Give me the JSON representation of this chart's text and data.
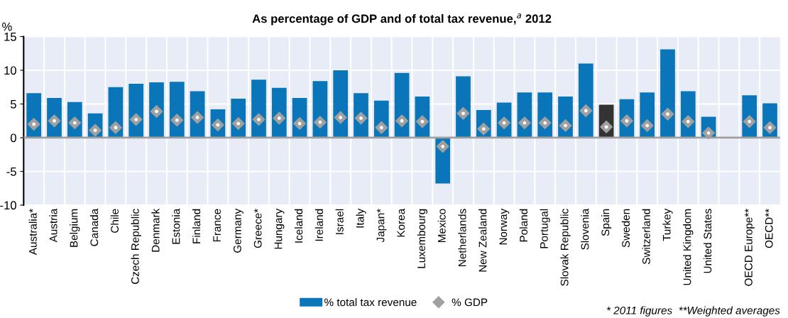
{
  "chart_data": {
    "type": "bar",
    "title": "As percentage of GDP and of total tax revenue,$^{a}$ 2012",
    "ylabel": "%",
    "categories": [
      "Australia*",
      "Austria",
      "Belgium",
      "Canada",
      "Chile",
      "Czech Republic",
      "Denmark",
      "Estonia",
      "Finland",
      "France",
      "Germany",
      "Greece*",
      "Hungary",
      "Iceland",
      "Ireland",
      "Israel",
      "Italy",
      "Japan*",
      "Korea",
      "Luxembourg",
      "Mexico",
      "Netherlands",
      "New Zealand",
      "Norway",
      "Poland",
      "Portugal",
      "Slovak Republic",
      "Slovenia",
      "Spain",
      "Sweden",
      "Switzerland",
      "Turkey",
      "United Kingdom",
      "United States",
      null,
      "OECD Europe**",
      "OECD**"
    ],
    "series": [
      {
        "name": "% total tax revenue",
        "color": "#0a76b9",
        "colors": [
          "#0a76b9",
          "#0a76b9",
          "#0a76b9",
          "#0a76b9",
          "#0a76b9",
          "#0a76b9",
          "#0a76b9",
          "#0a76b9",
          "#0a76b9",
          "#0a76b9",
          "#0a76b9",
          "#0a76b9",
          "#0a76b9",
          "#0a76b9",
          "#0a76b9",
          "#0a76b9",
          "#0a76b9",
          "#0a76b9",
          "#0a76b9",
          "#0a76b9",
          "#0a76b9",
          "#0a76b9",
          "#0a76b9",
          "#0a76b9",
          "#0a76b9",
          "#0a76b9",
          "#0a76b9",
          "#0a76b9",
          "#333333",
          "#0a76b9",
          "#0a76b9",
          "#0a76b9",
          "#0a76b9",
          "#0a76b9",
          "#0a76b9",
          "#0a76b9",
          "#0a76b9"
        ],
        "values": [
          6.6,
          5.9,
          5.3,
          3.6,
          7.5,
          8.0,
          8.2,
          8.3,
          6.9,
          4.2,
          5.8,
          8.6,
          7.4,
          5.9,
          8.4,
          10.0,
          6.6,
          5.5,
          9.6,
          6.1,
          -6.8,
          9.1,
          4.1,
          5.2,
          6.7,
          6.7,
          6.1,
          11.0,
          4.9,
          5.7,
          6.7,
          13.1,
          6.9,
          3.1,
          null,
          6.3,
          5.1
        ]
      },
      {
        "name": "% GDP",
        "type": "scatter",
        "marker": "diamond",
        "color": "#a0a0a0",
        "values": [
          2.0,
          2.5,
          2.2,
          1.1,
          1.5,
          2.7,
          3.9,
          2.6,
          3.0,
          1.9,
          2.1,
          2.7,
          2.9,
          2.1,
          2.3,
          3.0,
          2.9,
          1.5,
          2.5,
          2.4,
          -1.3,
          3.6,
          1.3,
          2.2,
          2.2,
          2.2,
          1.8,
          4.0,
          1.6,
          2.5,
          1.8,
          3.5,
          2.4,
          0.7,
          null,
          2.4,
          1.5
        ]
      }
    ],
    "ylim": [
      -10,
      15
    ],
    "yticks": [
      -10,
      -5,
      0,
      5,
      10,
      15
    ],
    "grid": true,
    "legend": "bottom",
    "ref_lines": [
      {
        "axis": "y",
        "value": 0,
        "color": "#a0a0a0"
      }
    ],
    "annotations": [
      "* 2011 figures  **Weighted averages"
    ]
  }
}
